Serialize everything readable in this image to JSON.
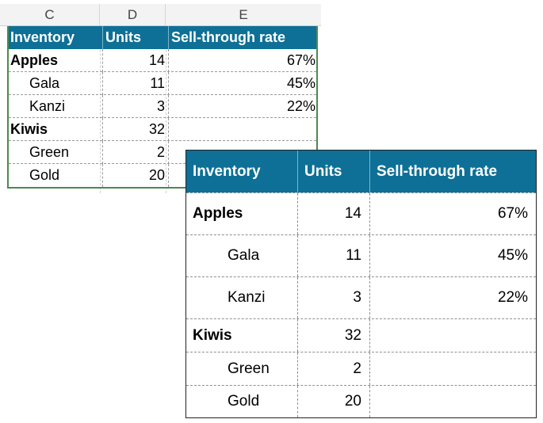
{
  "sheet": {
    "columns": [
      "C",
      "D",
      "E"
    ],
    "header": {
      "inventory": "Inventory",
      "units": "Units",
      "rate": "Sell-through rate"
    },
    "rows": [
      {
        "name": "Apples",
        "units": "14",
        "rate": "67%"
      },
      {
        "name": "Gala",
        "units": "11",
        "rate": "45%"
      },
      {
        "name": "Kanzi",
        "units": "3",
        "rate": "22%"
      },
      {
        "name": "Kiwis",
        "units": "32",
        "rate": ""
      },
      {
        "name": "Green",
        "units": "2",
        "rate": ""
      },
      {
        "name": "Gold",
        "units": "20",
        "rate": ""
      }
    ]
  },
  "pasted": {
    "header": {
      "inventory": "Inventory",
      "units": "Units",
      "rate": "Sell-through rate"
    },
    "rows": [
      {
        "name": "Apples",
        "units": "14",
        "rate": "67%"
      },
      {
        "name": "Gala",
        "units": "11",
        "rate": "45%"
      },
      {
        "name": "Kanzi",
        "units": "3",
        "rate": "22%"
      },
      {
        "name": "Kiwis",
        "units": "32",
        "rate": ""
      },
      {
        "name": "Green",
        "units": "2",
        "rate": ""
      },
      {
        "name": "Gold",
        "units": "20",
        "rate": ""
      }
    ]
  },
  "colors": {
    "header_bg": "#0e7096",
    "selection_border": "#4a8a4e"
  }
}
